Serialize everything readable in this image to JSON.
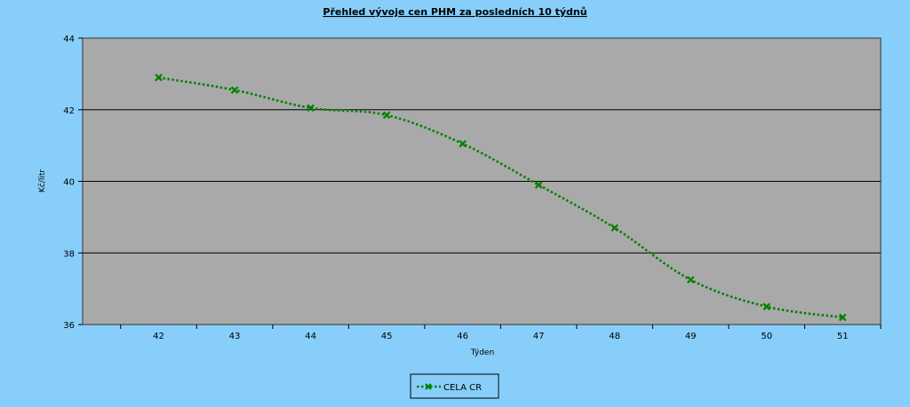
{
  "chart_data": {
    "type": "line",
    "title": "Přehled vývoje cen PHM za posledních 10 týdnů",
    "xlabel": "Týden",
    "ylabel": "Kč/litr",
    "x": [
      42,
      43,
      44,
      45,
      46,
      47,
      48,
      49,
      50,
      51
    ],
    "ylim": [
      36,
      44
    ],
    "yticks": [
      36,
      38,
      40,
      42,
      44
    ],
    "grid": true,
    "legend_position": "bottom-center",
    "series": [
      {
        "name": "CELA CR",
        "color": "#008000",
        "line_style": "dotted",
        "marker": "x",
        "values": [
          42.9,
          42.55,
          42.05,
          41.85,
          41.05,
          39.9,
          38.7,
          37.25,
          36.5,
          36.2
        ]
      }
    ],
    "colors": {
      "page_background": "#87cefa",
      "plot_background": "#a9a9a9",
      "gridline": "#000000"
    }
  }
}
